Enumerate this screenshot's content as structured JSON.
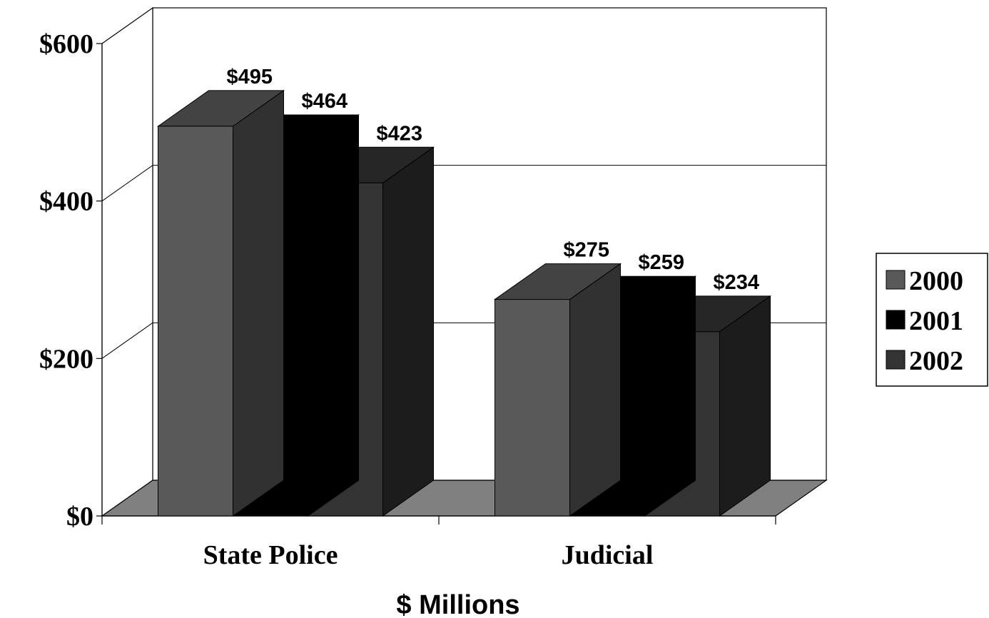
{
  "chart_data": {
    "type": "bar",
    "style": "3d-clustered-column",
    "categories": [
      "State Police",
      "Judicial"
    ],
    "series": [
      {
        "name": "2000",
        "values": [
          495,
          275
        ],
        "labels": [
          "$495",
          "$275"
        ],
        "color": "#595959"
      },
      {
        "name": "2001",
        "values": [
          464,
          259
        ],
        "labels": [
          "$464",
          "$259"
        ],
        "color": "#000000"
      },
      {
        "name": "2002",
        "values": [
          423,
          234
        ],
        "labels": [
          "$423",
          "$234"
        ],
        "color": "#333333"
      }
    ],
    "xlabel": "$ Millions",
    "ylabel": "",
    "ylim": [
      0,
      600
    ],
    "yticks": [
      0,
      200,
      400,
      600
    ],
    "ytick_labels": [
      "$0",
      "$200",
      "$400",
      "$600"
    ],
    "grid": true,
    "legend": "right",
    "floor_color": "#808080"
  }
}
